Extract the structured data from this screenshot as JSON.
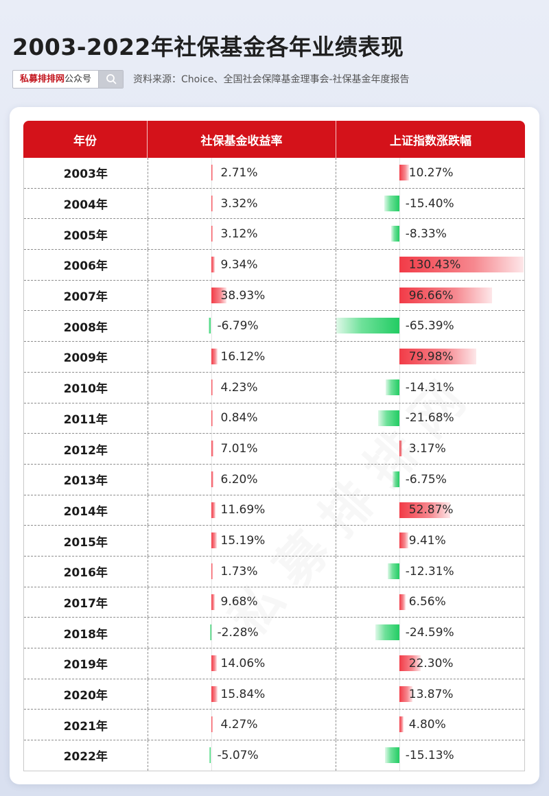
{
  "header": {
    "title": "2003-2022年社保基金各年业绩表现",
    "brand": "私募排排网",
    "brand_suffix": "公众号",
    "source": "资料来源：Choice、全国社会保障基金理事会-社保基金年度报告"
  },
  "watermark": "私募排排网",
  "colors": {
    "header_red": "#d4121a",
    "positive": "#f23b47",
    "negative": "#22cc63"
  },
  "chart_data": {
    "type": "table",
    "columns": [
      "年份",
      "社保基金收益率",
      "上证指数涨跌幅"
    ],
    "rows": [
      {
        "year": "2003年",
        "fund": 2.71,
        "fund_label": "2.71%",
        "index": 10.27,
        "index_label": "10.27%"
      },
      {
        "year": "2004年",
        "fund": 3.32,
        "fund_label": "3.32%",
        "index": -15.4,
        "index_label": "-15.40%"
      },
      {
        "year": "2005年",
        "fund": 3.12,
        "fund_label": "3.12%",
        "index": -8.33,
        "index_label": "-8.33%"
      },
      {
        "year": "2006年",
        "fund": 9.34,
        "fund_label": "9.34%",
        "index": 130.43,
        "index_label": "130.43%"
      },
      {
        "year": "2007年",
        "fund": 38.93,
        "fund_label": "38.93%",
        "index": 96.66,
        "index_label": "96.66%"
      },
      {
        "year": "2008年",
        "fund": -6.79,
        "fund_label": "-6.79%",
        "index": -65.39,
        "index_label": "-65.39%"
      },
      {
        "year": "2009年",
        "fund": 16.12,
        "fund_label": "16.12%",
        "index": 79.98,
        "index_label": "79.98%"
      },
      {
        "year": "2010年",
        "fund": 4.23,
        "fund_label": "4.23%",
        "index": -14.31,
        "index_label": "-14.31%"
      },
      {
        "year": "2011年",
        "fund": 0.84,
        "fund_label": "0.84%",
        "index": -21.68,
        "index_label": "-21.68%"
      },
      {
        "year": "2012年",
        "fund": 7.01,
        "fund_label": "7.01%",
        "index": 3.17,
        "index_label": "3.17%"
      },
      {
        "year": "2013年",
        "fund": 6.2,
        "fund_label": "6.20%",
        "index": -6.75,
        "index_label": "-6.75%"
      },
      {
        "year": "2014年",
        "fund": 11.69,
        "fund_label": "11.69%",
        "index": 52.87,
        "index_label": "52.87%"
      },
      {
        "year": "2015年",
        "fund": 15.19,
        "fund_label": "15.19%",
        "index": 9.41,
        "index_label": "9.41%"
      },
      {
        "year": "2016年",
        "fund": 1.73,
        "fund_label": "1.73%",
        "index": -12.31,
        "index_label": "-12.31%"
      },
      {
        "year": "2017年",
        "fund": 9.68,
        "fund_label": "9.68%",
        "index": 6.56,
        "index_label": "6.56%"
      },
      {
        "year": "2018年",
        "fund": -2.28,
        "fund_label": "-2.28%",
        "index": -24.59,
        "index_label": "-24.59%"
      },
      {
        "year": "2019年",
        "fund": 14.06,
        "fund_label": "14.06%",
        "index": 22.3,
        "index_label": "22.30%"
      },
      {
        "year": "2020年",
        "fund": 15.84,
        "fund_label": "15.84%",
        "index": 13.87,
        "index_label": "13.87%"
      },
      {
        "year": "2021年",
        "fund": 4.27,
        "fund_label": "4.27%",
        "index": 4.8,
        "index_label": "4.80%"
      },
      {
        "year": "2022年",
        "fund": -5.07,
        "fund_label": "-5.07%",
        "index": -15.13,
        "index_label": "-15.13%"
      }
    ]
  }
}
